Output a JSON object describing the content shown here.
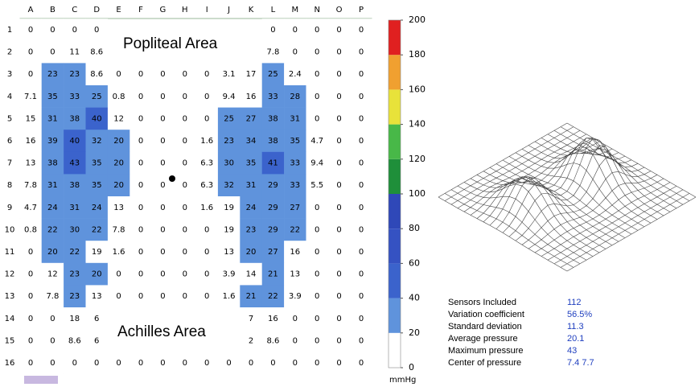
{
  "map": {
    "columns": [
      "A",
      "B",
      "C",
      "D",
      "E",
      "F",
      "G",
      "H",
      "I",
      "J",
      "K",
      "L",
      "M",
      "N",
      "O",
      "P"
    ],
    "rows": [
      {
        "label": "1",
        "values": [
          0,
          0,
          0,
          0,
          null,
          null,
          null,
          null,
          null,
          null,
          null,
          0,
          0,
          0,
          0,
          0
        ]
      },
      {
        "label": "2",
        "values": [
          0,
          0,
          11,
          8.6,
          null,
          null,
          null,
          null,
          null,
          null,
          null,
          7.8,
          0,
          0,
          0,
          0
        ]
      },
      {
        "label": "3",
        "values": [
          0,
          23,
          23,
          8.6,
          0,
          0,
          0,
          0,
          0,
          3.1,
          17,
          25,
          2.4,
          0,
          0,
          0
        ]
      },
      {
        "label": "4",
        "values": [
          7.1,
          35,
          33,
          25,
          0.8,
          0,
          0,
          0,
          0,
          9.4,
          16,
          33,
          28,
          0,
          0,
          0
        ]
      },
      {
        "label": "5",
        "values": [
          15,
          31,
          38,
          40,
          12,
          0,
          0,
          0,
          0,
          25,
          27,
          38,
          31,
          0,
          0,
          0
        ]
      },
      {
        "label": "6",
        "values": [
          16,
          39,
          40,
          32,
          20,
          0,
          0,
          0,
          1.6,
          23,
          34,
          38,
          35,
          4.7,
          0,
          0
        ]
      },
      {
        "label": "7",
        "values": [
          13,
          38,
          43,
          35,
          20,
          0,
          0,
          0,
          6.3,
          30,
          35,
          41,
          33,
          9.4,
          0,
          0
        ]
      },
      {
        "label": "8",
        "values": [
          7.8,
          31,
          38,
          35,
          20,
          0,
          0,
          0,
          6.3,
          32,
          31,
          29,
          33,
          5.5,
          0,
          0
        ]
      },
      {
        "label": "9",
        "values": [
          4.7,
          24,
          31,
          24,
          13,
          0,
          0,
          0,
          1.6,
          19,
          24,
          29,
          27,
          0,
          0,
          0
        ]
      },
      {
        "label": "10",
        "values": [
          0.8,
          22,
          30,
          22,
          7.8,
          0,
          0,
          0,
          0,
          19,
          23,
          29,
          22,
          0,
          0,
          0
        ]
      },
      {
        "label": "11",
        "values": [
          0,
          20,
          22,
          19,
          1.6,
          0,
          0,
          0,
          0,
          13,
          20,
          27,
          16,
          0,
          0,
          0
        ]
      },
      {
        "label": "12",
        "values": [
          0,
          12,
          23,
          20,
          0,
          0,
          0,
          0,
          0,
          3.9,
          14,
          21,
          13,
          0,
          0,
          0
        ]
      },
      {
        "label": "13",
        "values": [
          0,
          7.8,
          23,
          13,
          0,
          0,
          0,
          0,
          0,
          1.6,
          21,
          22,
          3.9,
          0,
          0,
          0
        ]
      },
      {
        "label": "14",
        "values": [
          0,
          0,
          18,
          6,
          null,
          null,
          null,
          null,
          null,
          null,
          7,
          16,
          0,
          0,
          0,
          0
        ]
      },
      {
        "label": "15",
        "values": [
          0,
          0,
          8.6,
          6,
          null,
          null,
          null,
          null,
          null,
          null,
          2,
          8.6,
          0,
          0,
          0,
          0
        ]
      },
      {
        "label": "16",
        "values": [
          0,
          0,
          0,
          0,
          0,
          0,
          0,
          0,
          0,
          0,
          0,
          0,
          0,
          0,
          0,
          0
        ]
      }
    ],
    "overlay_top": "Popliteal Area",
    "overlay_bottom": "Achilles Area"
  },
  "scale": {
    "ticks": [
      0,
      20,
      40,
      60,
      80,
      100,
      120,
      140,
      160,
      180,
      200
    ],
    "colors": [
      "#ffffff",
      "#5f93dc",
      "#3b63cc",
      "#3552c2",
      "#2f48b8",
      "#1f8f3a",
      "#48b848",
      "#e8e23a",
      "#f0a030",
      "#e02020"
    ],
    "unit": "mmHg"
  },
  "stats": [
    {
      "label": "Sensors Included",
      "value": "112"
    },
    {
      "label": "Variation coefficient",
      "value": "56.5%"
    },
    {
      "label": "Standard deviation",
      "value": "11.3"
    },
    {
      "label": "Average pressure",
      "value": "20.1"
    },
    {
      "label": "Maximum pressure",
      "value": "43"
    },
    {
      "label": "Center of pressure",
      "value": "7.4  7.7"
    }
  ]
}
